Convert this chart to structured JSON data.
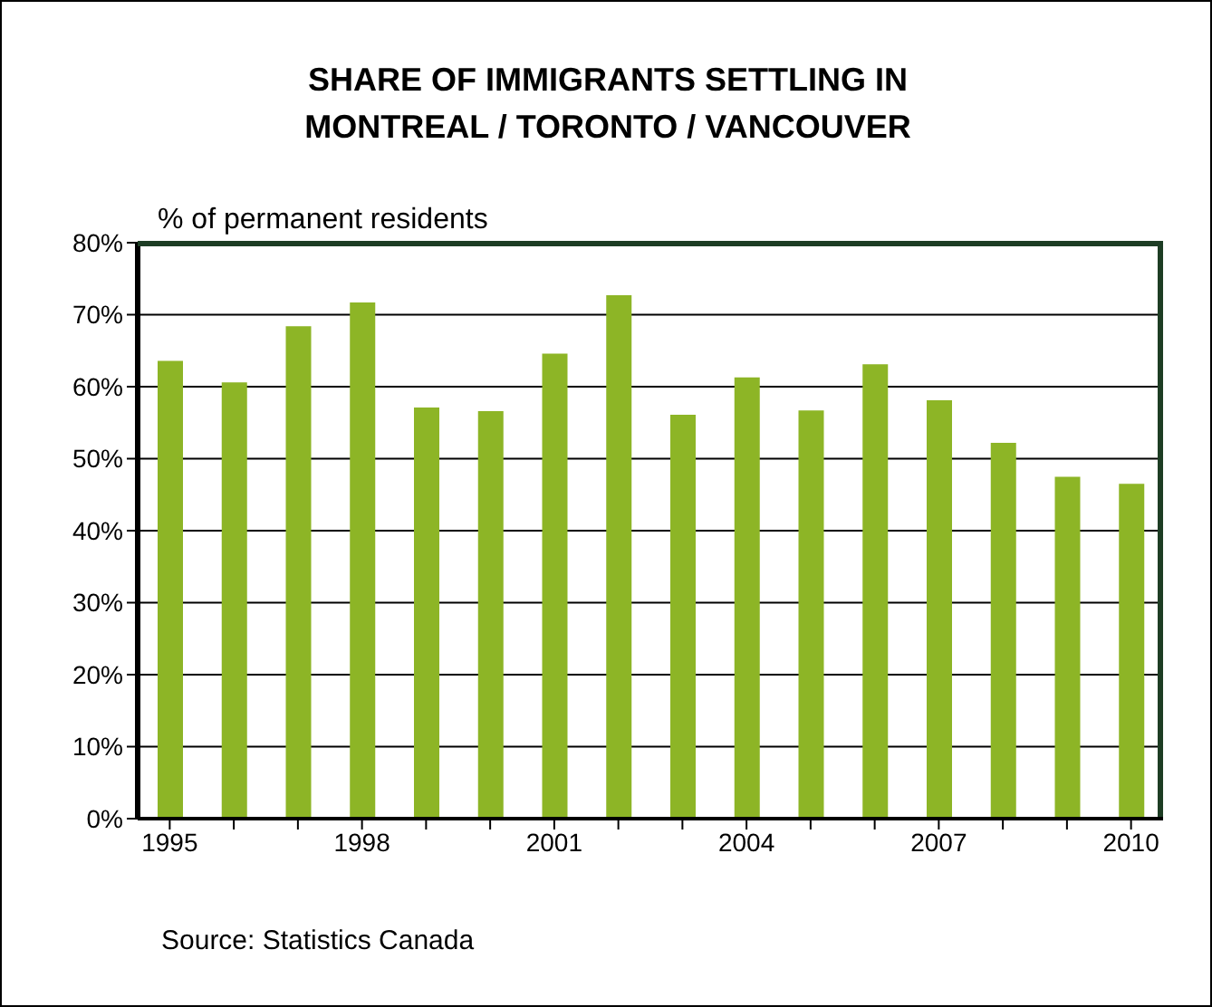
{
  "chart_data": {
    "type": "bar",
    "title": "SHARE OF IMMIGRANTS SETTLING IN\nMONTREAL / TORONTO / VANCOUVER",
    "ylabel": "% of permanent residents",
    "annotations": [
      "Source: Statistics Canada"
    ],
    "categories": [
      "1995",
      null,
      null,
      "1998",
      null,
      null,
      "2001",
      null,
      null,
      "2004",
      null,
      null,
      "2007",
      null,
      null,
      "2010"
    ],
    "values": [
      63.6,
      60.6,
      68.4,
      71.7,
      57.1,
      56.6,
      64.6,
      72.7,
      56.1,
      61.3,
      56.7,
      63.1,
      58.1,
      52.2,
      47.5,
      46.5
    ],
    "color": "#8db526",
    "ylim": [
      0,
      80
    ],
    "yticks": [
      {
        "value": 0,
        "label": "0%"
      },
      {
        "value": 10,
        "label": "10%"
      },
      {
        "value": 20,
        "label": "20%"
      },
      {
        "value": 30,
        "label": "30%"
      },
      {
        "value": 40,
        "label": "40%"
      },
      {
        "value": 50,
        "label": "50%"
      },
      {
        "value": 60,
        "label": "60%"
      },
      {
        "value": 70,
        "label": "70%"
      },
      {
        "value": 80,
        "label": "80%"
      }
    ],
    "grid": "y"
  }
}
